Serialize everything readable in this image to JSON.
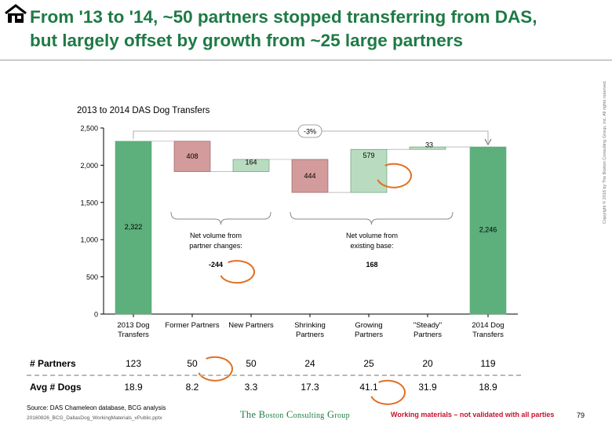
{
  "title_line1": "From '13 to '14, ~50 partners stopped transferring from DAS,",
  "title_line2": "but largely offset by growth from ~25 large partners",
  "colors": {
    "title": "#1e7a45",
    "total_bar": "#5daf7c",
    "decrease": "#d39b9b",
    "increase": "#b9dcc0",
    "circle": "#e07020",
    "warning": "#c8102e"
  },
  "chart_data": {
    "type": "bar",
    "subtype": "waterfall",
    "title": "2013 to 2014 DAS Dog Transfers",
    "ylim": [
      0,
      2500
    ],
    "yticks": [
      0,
      500,
      1000,
      1500,
      2000,
      2500
    ],
    "ytick_labels": [
      "0",
      "500",
      "1,000",
      "1,500",
      "2,000",
      "2,500"
    ],
    "categories": [
      [
        "2013 Dog",
        "Transfers"
      ],
      [
        "Former Partners"
      ],
      [
        "New Partners"
      ],
      [
        "Shrinking",
        "Partners"
      ],
      [
        "Growing",
        "Partners"
      ],
      [
        "\"Steady\"",
        "Partners"
      ],
      [
        "2014 Dog",
        "Transfers"
      ]
    ],
    "bars": [
      {
        "kind": "total",
        "base": 0,
        "top": 2322,
        "label": "2,322"
      },
      {
        "kind": "decrease",
        "base": 1914,
        "top": 2322,
        "label": "408"
      },
      {
        "kind": "increase",
        "base": 1914,
        "top": 2078,
        "label": "164"
      },
      {
        "kind": "decrease",
        "base": 1634,
        "top": 2078,
        "label": "444"
      },
      {
        "kind": "increase",
        "base": 1634,
        "top": 2213,
        "label": "579"
      },
      {
        "kind": "increase",
        "base": 2213,
        "top": 2246,
        "label": "33"
      },
      {
        "kind": "total",
        "base": 0,
        "top": 2246,
        "label": "2,246"
      }
    ],
    "change_badge": "-3%",
    "annotations": [
      {
        "line1": "Net volume from",
        "line2": "partner changes:",
        "value": "-244"
      },
      {
        "line1": "Net volume from",
        "line2": "existing base:",
        "value": "168"
      }
    ]
  },
  "table": {
    "rows": [
      {
        "label": "# Partners",
        "values": [
          "123",
          "50",
          "50",
          "24",
          "25",
          "20",
          "119"
        ]
      },
      {
        "label": "Avg # Dogs",
        "values": [
          "18.9",
          "8.2",
          "3.3",
          "17.3",
          "41.1",
          "31.9",
          "18.9"
        ]
      }
    ]
  },
  "footer": {
    "source": "Source: DAS Chameleon database, BCG analysis",
    "filename": "20160826_BCG_DallasDog_WorkingMaterials_vPublic.pptx",
    "bcg_the": "The",
    "bcg_b": "B",
    "bcg_oston": "oston",
    "bcg_c": "C",
    "bcg_onsulting": "onsulting",
    "bcg_g": "G",
    "bcg_roup": "roup",
    "warning": "Working materials – not validated with all parties",
    "page": "79",
    "copyright": "Copyright © 2016 by The Boston Consulting Group, Inc. All rights reserved."
  }
}
